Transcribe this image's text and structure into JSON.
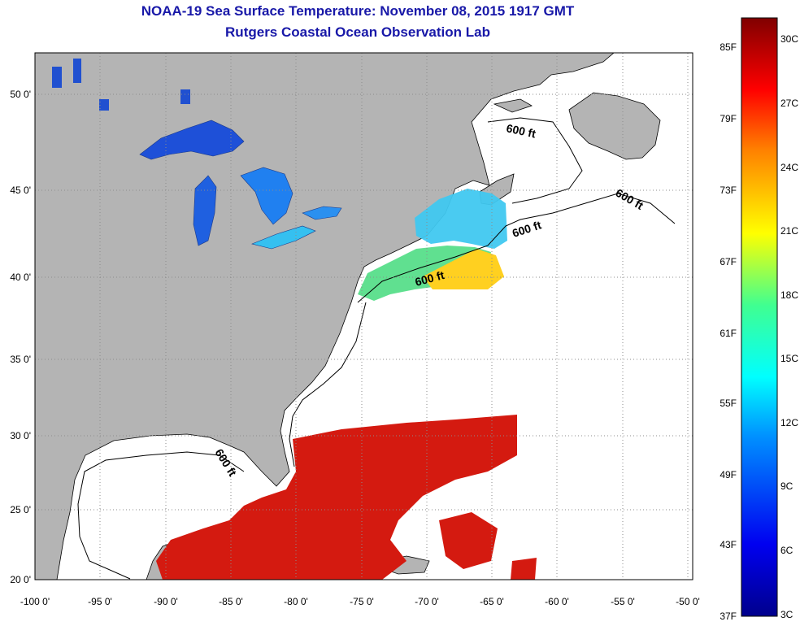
{
  "header": {
    "title": "NOAA-19 Sea Surface Temperature:  November 08, 2015 1917 GMT",
    "subtitle": "Rutgers Coastal Ocean Observation Lab"
  },
  "map": {
    "lon_labels": [
      "-100 0'",
      "-95 0'",
      "-90 0'",
      "-85 0'",
      "-80 0'",
      "-75 0'",
      "-70 0'",
      "-65 0'",
      "-60 0'",
      "-55 0'",
      "-50 0'"
    ],
    "lat_labels": [
      "50 0'",
      "45 0'",
      "40 0'",
      "35 0'",
      "30 0'",
      "25 0'",
      "20 0'"
    ],
    "contour_label": "600 ft",
    "colors": {
      "land": "#b4b4b4",
      "ocean_no_data": "#ffffff",
      "grid": "#8c8c8c"
    }
  },
  "colorbar": {
    "fahrenheit_labels": [
      "85F",
      "79F",
      "73F",
      "67F",
      "61F",
      "55F",
      "49F",
      "43F",
      "37F"
    ],
    "celsius_labels": [
      "30C",
      "27C",
      "24C",
      "21C",
      "18C",
      "15C",
      "12C",
      "9C",
      "6C",
      "3C"
    ]
  }
}
